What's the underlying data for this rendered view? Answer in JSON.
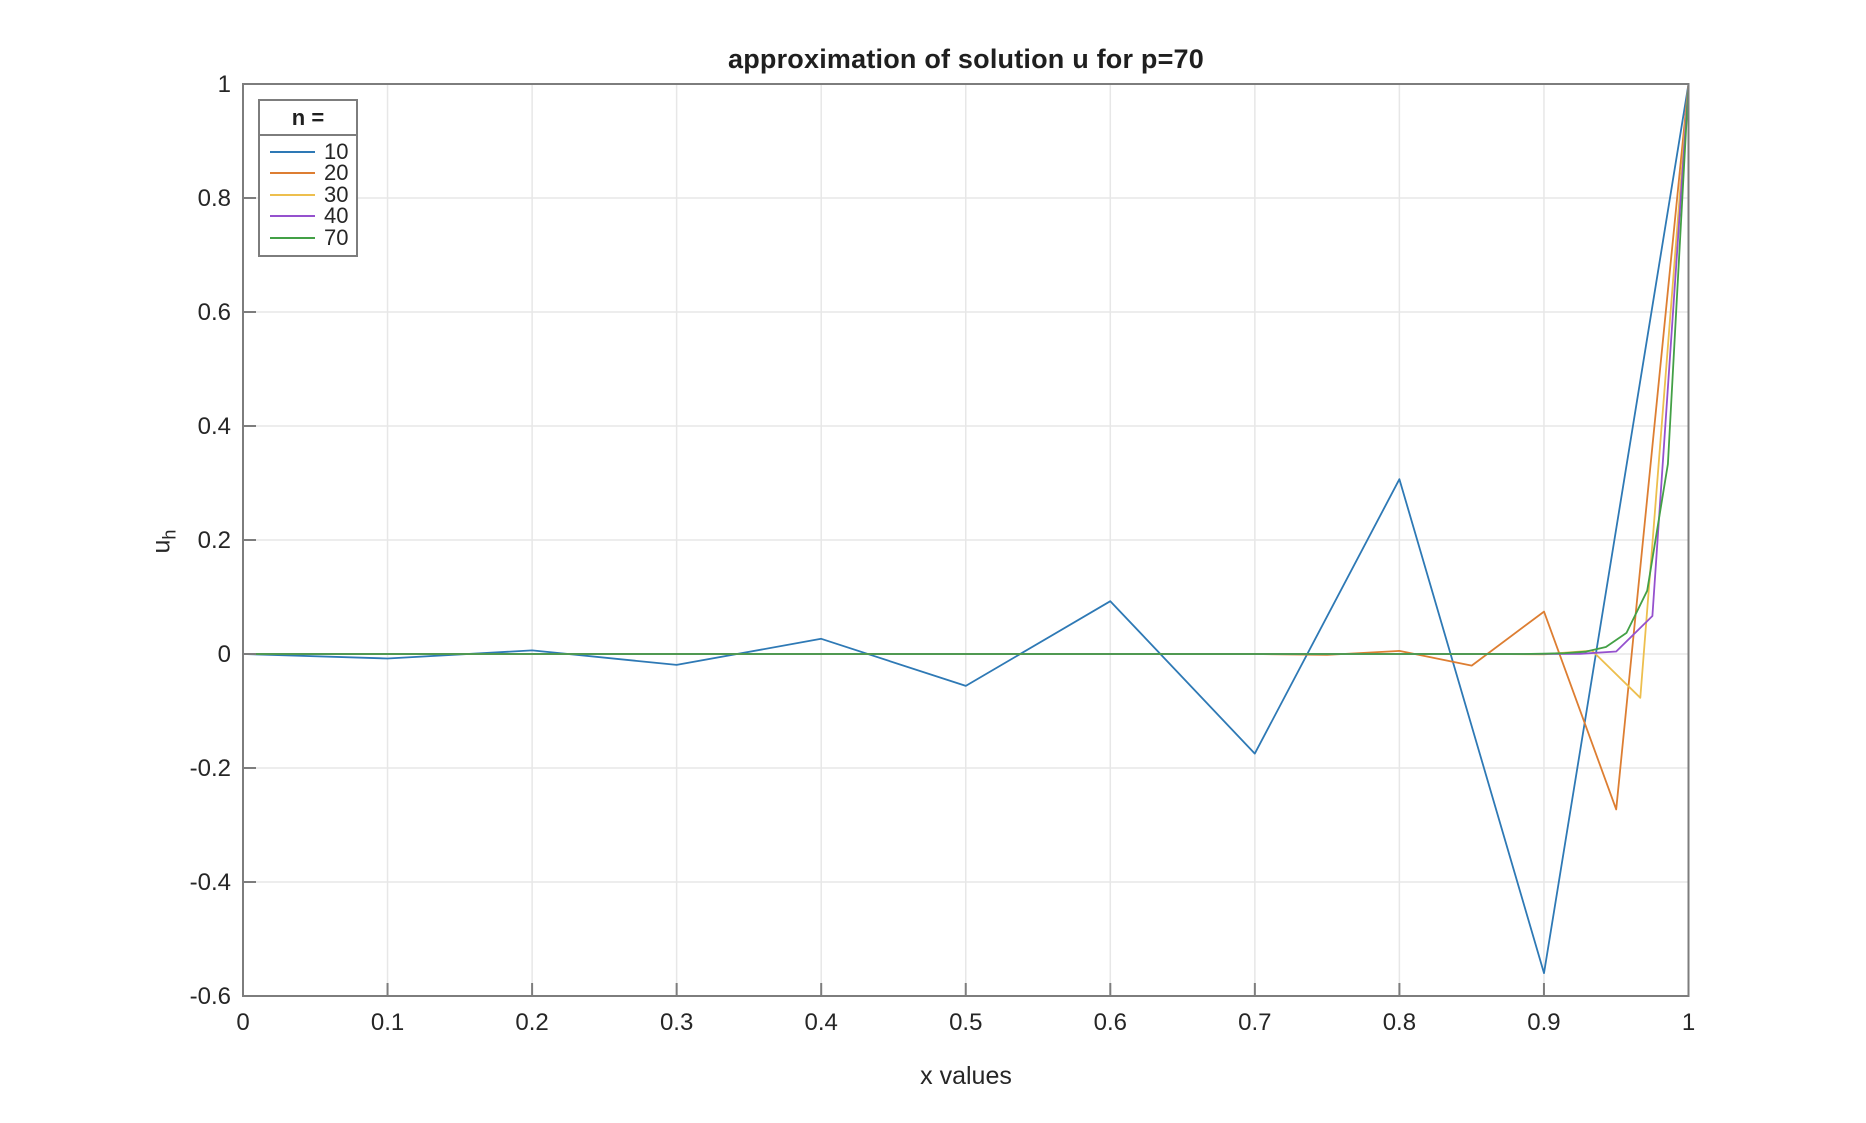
{
  "figure": {
    "title": "approximation of solution u for p=70",
    "xlabel": "x values",
    "ylabel_base": "u",
    "ylabel_sub": "h",
    "background": "#ffffff",
    "colors": {
      "grid": "#e7e7e7",
      "axis": "#7d7d7d",
      "tick_text": "#262626",
      "title_text": "#1f1f1f"
    }
  },
  "legend": {
    "title": "n =",
    "position": "top-left",
    "entries": [
      {
        "label": "10",
        "color": "#2E79B5"
      },
      {
        "label": "20",
        "color": "#DD7E32"
      },
      {
        "label": "30",
        "color": "#EDBF4E"
      },
      {
        "label": "40",
        "color": "#9551CE"
      },
      {
        "label": "70",
        "color": "#43A046"
      }
    ]
  },
  "chart_data": {
    "type": "line",
    "title": "approximation of solution u for p=70",
    "xlabel": "x values",
    "ylabel": "u_h",
    "xlim": [
      0,
      1
    ],
    "ylim": [
      -0.6,
      1
    ],
    "x_ticks": [
      0,
      0.1,
      0.2,
      0.3,
      0.4,
      0.5,
      0.6,
      0.7,
      0.8,
      0.9,
      1
    ],
    "y_ticks": [
      -0.6,
      -0.4,
      -0.2,
      0,
      0.2,
      0.4,
      0.6,
      0.8,
      1
    ],
    "grid": true,
    "legend_title": "n =",
    "legend_position": "top-left",
    "x_rule": "for each series, x_i = i/n for i = 0..n",
    "series": [
      {
        "name": "10",
        "n": 10,
        "color": "#2E79B5",
        "values": [
          0,
          -0.0079,
          0.0063,
          -0.0192,
          0.0267,
          -0.0559,
          0.0927,
          -0.1748,
          0.3067,
          -0.5599,
          1
        ]
      },
      {
        "name": "20",
        "n": 20,
        "color": "#DD7E32",
        "values": [
          0,
          0,
          0,
          0,
          0,
          0,
          0,
          0,
          0,
          0,
          0,
          0,
          0,
          0,
          0,
          -0.0015,
          0.0055,
          -0.0203,
          0.0744,
          -0.2727,
          1
        ]
      },
      {
        "name": "30",
        "n": 30,
        "color": "#EDBF4E",
        "values": [
          0,
          0,
          0,
          0,
          0,
          0,
          0,
          0,
          0,
          0,
          0,
          0,
          0,
          0,
          0,
          0,
          0,
          0,
          0,
          0,
          0,
          0,
          0,
          0,
          0,
          0,
          0,
          -0.0005,
          0.0059,
          -0.0769,
          1
        ]
      },
      {
        "name": "40",
        "n": 40,
        "color": "#9551CE",
        "values": [
          0,
          0,
          0,
          0,
          0,
          0,
          0,
          0,
          0,
          0,
          0,
          0,
          0,
          0,
          0,
          0,
          0,
          0,
          0,
          0,
          0,
          0,
          0,
          0,
          0,
          0,
          0,
          0,
          0,
          0,
          0,
          0,
          0,
          0,
          0,
          0,
          0,
          0.0003,
          0.0044,
          0.0667,
          1
        ]
      },
      {
        "name": "70",
        "n": 70,
        "color": "#43A046",
        "values": [
          0,
          0,
          0,
          0,
          0,
          0,
          0,
          0,
          0,
          0,
          0,
          0,
          0,
          0,
          0,
          0,
          0,
          0,
          0,
          0,
          0,
          0,
          0,
          0,
          0,
          0,
          0,
          0,
          0,
          0,
          0,
          0,
          0,
          0,
          0,
          0,
          0,
          0,
          0,
          0,
          0,
          0,
          0,
          0,
          0,
          0,
          0,
          0,
          0,
          0,
          0,
          0,
          0,
          0,
          0,
          0,
          0,
          0,
          0,
          0,
          0,
          0,
          0,
          0.0005,
          0.0014,
          0.0041,
          0.0123,
          0.037,
          0.1111,
          0.3333,
          1
        ]
      }
    ]
  }
}
